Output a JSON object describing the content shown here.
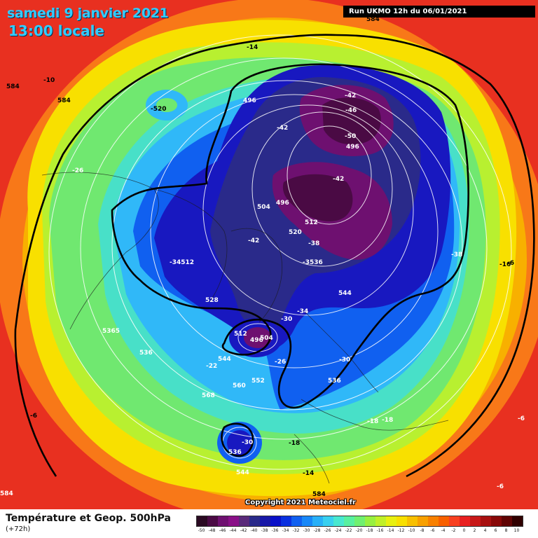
{
  "header": {
    "date_line": "samedi 9 janvier 2021",
    "time_line": "13:00 locale",
    "run_info": "Run UKMO 12h du 06/01/2021"
  },
  "footer": {
    "title": "Température et Geop. 500hPa",
    "subtitle": "(+72h)",
    "copyright": "Copyright 2021 Meteociel.fr"
  },
  "legend": {
    "ticks": [
      "-50",
      "-48",
      "-46",
      "-44",
      "-42",
      "-40",
      "-38",
      "-36",
      "-34",
      "-32",
      "-30",
      "-28",
      "-26",
      "-24",
      "-22",
      "-20",
      "-18",
      "-16",
      "-14",
      "-12",
      "-10",
      "-8",
      "-6",
      "-4",
      "-2",
      "0",
      "2",
      "4",
      "6",
      "8",
      "10"
    ],
    "colors": [
      "#2a0a22",
      "#4a0a44",
      "#6e1070",
      "#8a1088",
      "#5a2a7a",
      "#2a2a8a",
      "#1818a8",
      "#0a10c8",
      "#0a30e0",
      "#1060f0",
      "#1888f8",
      "#28b0f8",
      "#38d0f0",
      "#48e8d0",
      "#58f0a0",
      "#70f070",
      "#98f040",
      "#c0f028",
      "#e8f010",
      "#f8e000",
      "#f8c000",
      "#f8a000",
      "#f88000",
      "#f86000",
      "#f84020",
      "#e82020",
      "#c81818",
      "#a81010",
      "#880808",
      "#600404",
      "#300000"
    ],
    "contour_color": "#000000"
  },
  "map_labels": [
    {
      "text": "584"
    },
    {
      "text": "-10"
    },
    {
      "text": "584"
    },
    {
      "text": "-520"
    },
    {
      "text": "-14"
    },
    {
      "text": "496"
    },
    {
      "text": "-42"
    },
    {
      "text": "-46"
    },
    {
      "text": "-42"
    },
    {
      "text": "-50"
    },
    {
      "text": "496"
    },
    {
      "text": "-42"
    },
    {
      "text": "496"
    },
    {
      "text": "504"
    },
    {
      "text": "512"
    },
    {
      "text": "520"
    },
    {
      "text": "-42"
    },
    {
      "text": "-38"
    },
    {
      "text": "-3536"
    },
    {
      "text": "-38"
    },
    {
      "text": "-16"
    },
    {
      "text": "-26"
    },
    {
      "text": "-34512"
    },
    {
      "text": "544"
    },
    {
      "text": "528"
    },
    {
      "text": "-34"
    },
    {
      "text": "-30"
    },
    {
      "text": "512"
    },
    {
      "text": "496"
    },
    {
      "text": "504"
    },
    {
      "text": "5365"
    },
    {
      "text": "536"
    },
    {
      "text": "544"
    },
    {
      "text": "-22"
    },
    {
      "text": "-26"
    },
    {
      "text": "552"
    },
    {
      "text": "560"
    },
    {
      "text": "-30"
    },
    {
      "text": "536"
    },
    {
      "text": "568"
    },
    {
      "text": "-6"
    },
    {
      "text": "-18"
    },
    {
      "text": "-18"
    },
    {
      "text": "-6"
    },
    {
      "text": "-30"
    },
    {
      "text": "536"
    },
    {
      "text": "-18"
    },
    {
      "text": "544"
    },
    {
      "text": "-14"
    },
    {
      "text": "584"
    },
    {
      "text": "-6"
    },
    {
      "text": "584"
    },
    {
      "text": "584"
    },
    {
      "text": "-6"
    }
  ]
}
